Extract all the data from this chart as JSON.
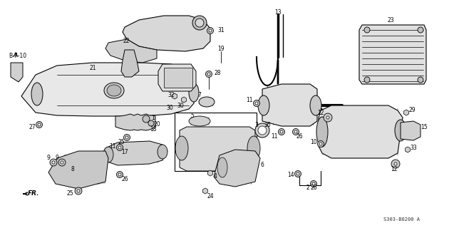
{
  "bg_color": "#ffffff",
  "line_color": "#000000",
  "diagram_code": "S303-B0200 A",
  "figsize": [
    6.37,
    3.2
  ],
  "dpi": 100
}
